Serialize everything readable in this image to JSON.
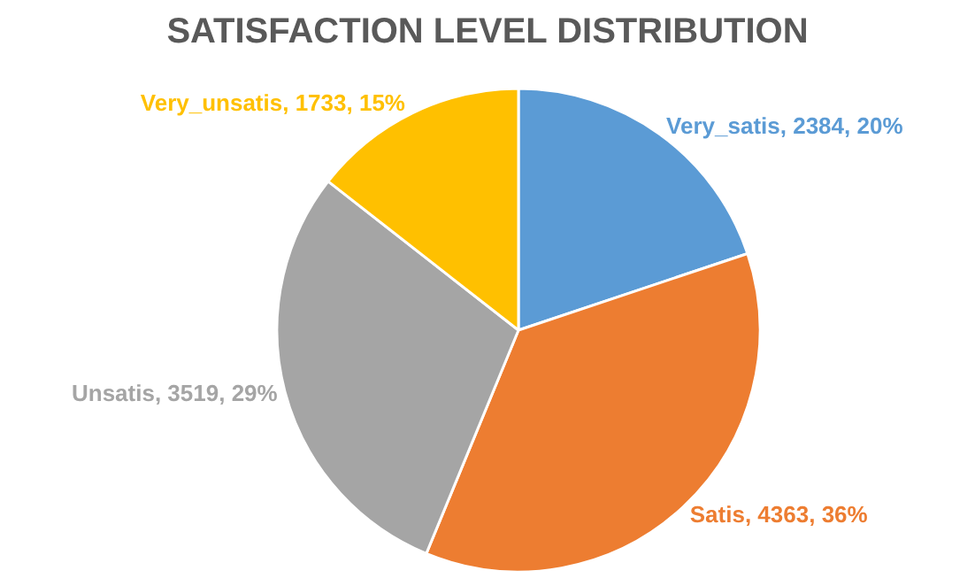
{
  "chart_data": {
    "type": "pie",
    "title": "SATISFACTION LEVEL DISTRIBUTION",
    "categories": [
      "Very_satis",
      "Satis",
      "Unsatis",
      "Very_unsatis"
    ],
    "values": [
      2384,
      4363,
      3519,
      1733
    ],
    "value_labels": [
      "2384, 20%",
      "4363, 36%",
      "3519, 29%",
      "1733, 15%"
    ],
    "colors": [
      "#5b9bd5",
      "#ed7d31",
      "#a5a5a5",
      "#ffc000"
    ],
    "legend": false
  }
}
